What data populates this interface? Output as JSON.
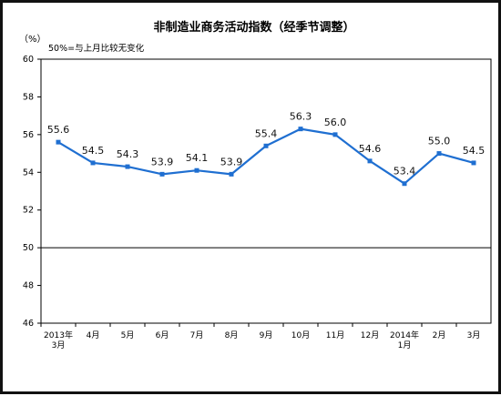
{
  "chart_data": {
    "type": "line",
    "title": "非制造业商务活动指数（经季节调整）",
    "unit_label": "（%）",
    "annotation": "50%=与上月比较无变化",
    "categories": [
      [
        "2013年",
        "3月"
      ],
      [
        "4月"
      ],
      [
        "5月"
      ],
      [
        "6月"
      ],
      [
        "7月"
      ],
      [
        "8月"
      ],
      [
        "9月"
      ],
      [
        "10月"
      ],
      [
        "11月"
      ],
      [
        "12月"
      ],
      [
        "2014年",
        "1月"
      ],
      [
        "2月"
      ],
      [
        "3月"
      ]
    ],
    "values": [
      55.6,
      54.5,
      54.3,
      53.9,
      54.1,
      53.9,
      55.4,
      56.3,
      56.0,
      54.6,
      53.4,
      55.0,
      54.5
    ],
    "data_labels": [
      "55.6",
      "54.5",
      "54.3",
      "53.9",
      "54.1",
      "53.9",
      "55.4",
      "56.3",
      "56.0",
      "54.6",
      "53.4",
      "55.0",
      "54.5"
    ],
    "ylim": [
      46,
      60
    ],
    "yticks": [
      "46",
      "48",
      "50",
      "52",
      "54",
      "56",
      "58",
      "60"
    ],
    "reference_line": 50,
    "line_color": "#1f6fd1",
    "grid": false
  }
}
